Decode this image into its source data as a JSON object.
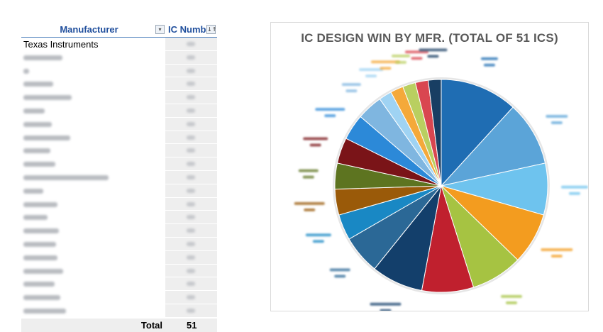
{
  "pivot": {
    "header_manufacturer": "Manufacturer",
    "header_ic_number": "IC Numb",
    "filter_glyph": "▾",
    "sort_glyph": "↓↑",
    "rows": [
      {
        "label": "Texas Instruments"
      },
      {
        "label": ""
      },
      {
        "label": ""
      },
      {
        "label": ""
      },
      {
        "label": ""
      },
      {
        "label": ""
      },
      {
        "label": ""
      },
      {
        "label": ""
      },
      {
        "label": ""
      },
      {
        "label": ""
      },
      {
        "label": ""
      },
      {
        "label": ""
      },
      {
        "label": ""
      },
      {
        "label": ""
      },
      {
        "label": ""
      },
      {
        "label": ""
      },
      {
        "label": ""
      },
      {
        "label": ""
      },
      {
        "label": ""
      },
      {
        "label": ""
      },
      {
        "label": ""
      }
    ],
    "total_label": "Total",
    "total_value": "51"
  },
  "chart_data": {
    "type": "pie",
    "title": "IC DESIGN WIN BY MFR. (TOTAL OF 51 ICS)",
    "total": 51,
    "legend": "none (blurred data labels around pie)",
    "slices": [
      {
        "value": 6,
        "color": "#1f6db3"
      },
      {
        "value": 5,
        "color": "#5ba4d8"
      },
      {
        "value": 4,
        "color": "#6ec3ee"
      },
      {
        "value": 4,
        "color": "#f39c1f"
      },
      {
        "value": 4,
        "color": "#a6c342"
      },
      {
        "value": 4,
        "color": "#c0202e"
      },
      {
        "value": 4,
        "color": "#133f6b"
      },
      {
        "value": 3,
        "color": "#2b6896"
      },
      {
        "value": 2,
        "color": "#1988c4"
      },
      {
        "value": 2,
        "color": "#9a5a09"
      },
      {
        "value": 2,
        "color": "#5d7420"
      },
      {
        "value": 2,
        "color": "#7a1418"
      },
      {
        "value": 2,
        "color": "#2c89d8"
      },
      {
        "value": 2,
        "color": "#7fb6e0"
      },
      {
        "value": 1,
        "color": "#9fd3f3"
      },
      {
        "value": 1,
        "color": "#f4a93a"
      },
      {
        "value": 1,
        "color": "#b9cf60"
      },
      {
        "value": 1,
        "color": "#d94650"
      },
      {
        "value": 1,
        "color": "#183e63"
      }
    ]
  }
}
